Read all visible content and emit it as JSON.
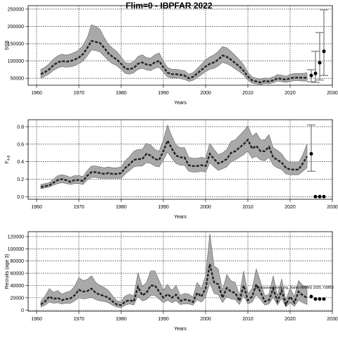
{
  "title": "Flim=0 - IBPFAR 2022",
  "footnote": "stockassessment.org, Name NWWG 2025, f:08f52",
  "chart_data": [
    {
      "type": "line",
      "ylabel": "SSB",
      "xlabel": "Years",
      "xlim": [
        1958,
        2030
      ],
      "ylim": [
        30000,
        260000
      ],
      "xticks": [
        1960,
        1970,
        1980,
        1990,
        2000,
        2010,
        2020,
        2030
      ],
      "yticks": [
        50000,
        100000,
        150000,
        200000,
        250000
      ],
      "grid": true,
      "x": [
        1961,
        1962,
        1963,
        1964,
        1965,
        1966,
        1967,
        1968,
        1969,
        1970,
        1971,
        1972,
        1973,
        1974,
        1975,
        1976,
        1977,
        1978,
        1979,
        1980,
        1981,
        1982,
        1983,
        1984,
        1985,
        1986,
        1987,
        1988,
        1989,
        1990,
        1991,
        1992,
        1993,
        1994,
        1995,
        1996,
        1997,
        1998,
        1999,
        2000,
        2001,
        2002,
        2003,
        2004,
        2005,
        2006,
        2007,
        2008,
        2009,
        2010,
        2011,
        2012,
        2013,
        2014,
        2015,
        2016,
        2017,
        2018,
        2019,
        2020,
        2021,
        2022,
        2023,
        2024
      ],
      "estimate": [
        62000,
        68000,
        76000,
        88000,
        96000,
        100000,
        98000,
        100000,
        104000,
        110000,
        120000,
        138000,
        158000,
        155000,
        152000,
        138000,
        122000,
        112000,
        104000,
        92000,
        78000,
        76000,
        80000,
        92000,
        96000,
        90000,
        88000,
        96000,
        100000,
        82000,
        66000,
        62000,
        62000,
        60000,
        58000,
        50000,
        54000,
        64000,
        74000,
        84000,
        92000,
        96000,
        104000,
        116000,
        112000,
        104000,
        94000,
        84000,
        72000,
        55000,
        44000,
        41000,
        38000,
        42000,
        41000,
        44000,
        50000,
        48000,
        46000,
        50000,
        52000,
        52000,
        51000,
        52000
      ],
      "lower": [
        50000,
        56000,
        63000,
        73000,
        80000,
        84000,
        82000,
        83000,
        86000,
        92000,
        100000,
        115000,
        132000,
        130000,
        126000,
        114000,
        101000,
        92000,
        86000,
        76000,
        64000,
        62000,
        66000,
        76000,
        79000,
        74000,
        72000,
        79000,
        82000,
        67000,
        54000,
        51000,
        51000,
        49000,
        47000,
        41000,
        44000,
        52000,
        60000,
        69000,
        76000,
        79000,
        86000,
        96000,
        92000,
        86000,
        77000,
        69000,
        59000,
        45000,
        36000,
        34000,
        32000,
        35000,
        34000,
        37000,
        42000,
        40000,
        38000,
        41000,
        43000,
        43000,
        42000,
        42000
      ],
      "upper": [
        76000,
        82000,
        92000,
        106000,
        115000,
        120000,
        117000,
        120000,
        125000,
        132000,
        145000,
        168000,
        205000,
        200000,
        192000,
        168000,
        148000,
        137000,
        127000,
        112000,
        95000,
        93000,
        98000,
        113000,
        118000,
        110000,
        108000,
        118000,
        123000,
        100000,
        81000,
        76000,
        76000,
        74000,
        72000,
        62000,
        66000,
        78000,
        90000,
        103000,
        112000,
        118000,
        128000,
        142000,
        138000,
        128000,
        116000,
        103000,
        89000,
        67000,
        54000,
        50000,
        47000,
        51000,
        50000,
        54000,
        61000,
        59000,
        56000,
        61000,
        64000,
        64000,
        64000,
        66000
      ],
      "projection": [
        {
          "x": 2025,
          "y": 58000,
          "lower": 40000,
          "upper": 75000
        },
        {
          "x": 2026,
          "y": 64000,
          "lower": 38000,
          "upper": 128000
        },
        {
          "x": 2027,
          "y": 95000,
          "lower": 45000,
          "upper": 182000
        },
        {
          "x": 2028,
          "y": 128000,
          "lower": 58000,
          "upper": 248000
        }
      ]
    },
    {
      "type": "line",
      "ylabel": "F",
      "ylabel_sub": "4-8",
      "xlabel": "Years",
      "xlim": [
        1958,
        2030
      ],
      "ylim": [
        -0.03,
        0.88
      ],
      "xticks": [
        1960,
        1970,
        1980,
        1990,
        2000,
        2010,
        2020,
        2030
      ],
      "yticks": [
        0.0,
        0.2,
        0.4,
        0.6,
        0.8
      ],
      "ytick_labels": [
        "0.0",
        "0.2",
        "0.4",
        "0.6",
        "0.8"
      ],
      "grid": true,
      "x": [
        1961,
        1962,
        1963,
        1964,
        1965,
        1966,
        1967,
        1968,
        1969,
        1970,
        1971,
        1972,
        1973,
        1974,
        1975,
        1976,
        1977,
        1978,
        1979,
        1980,
        1981,
        1982,
        1983,
        1984,
        1985,
        1986,
        1987,
        1988,
        1989,
        1990,
        1991,
        1992,
        1993,
        1994,
        1995,
        1996,
        1997,
        1998,
        1999,
        2000,
        2001,
        2002,
        2003,
        2004,
        2005,
        2006,
        2007,
        2008,
        2009,
        2010,
        2011,
        2012,
        2013,
        2014,
        2015,
        2016,
        2017,
        2018,
        2019,
        2020,
        2021,
        2022,
        2023,
        2024
      ],
      "estimate": [
        0.11,
        0.12,
        0.13,
        0.16,
        0.19,
        0.2,
        0.19,
        0.17,
        0.19,
        0.19,
        0.18,
        0.24,
        0.28,
        0.28,
        0.27,
        0.26,
        0.27,
        0.26,
        0.26,
        0.27,
        0.33,
        0.37,
        0.42,
        0.43,
        0.43,
        0.49,
        0.47,
        0.43,
        0.42,
        0.52,
        0.64,
        0.55,
        0.47,
        0.45,
        0.45,
        0.36,
        0.35,
        0.35,
        0.36,
        0.35,
        0.49,
        0.43,
        0.38,
        0.4,
        0.43,
        0.5,
        0.52,
        0.56,
        0.6,
        0.65,
        0.55,
        0.58,
        0.52,
        0.52,
        0.57,
        0.45,
        0.42,
        0.39,
        0.33,
        0.31,
        0.31,
        0.31,
        0.38,
        0.46
      ],
      "lower": [
        0.09,
        0.1,
        0.11,
        0.13,
        0.15,
        0.16,
        0.15,
        0.14,
        0.15,
        0.15,
        0.14,
        0.19,
        0.22,
        0.22,
        0.21,
        0.21,
        0.21,
        0.21,
        0.21,
        0.21,
        0.26,
        0.3,
        0.34,
        0.35,
        0.35,
        0.39,
        0.38,
        0.35,
        0.34,
        0.42,
        0.51,
        0.44,
        0.38,
        0.36,
        0.36,
        0.29,
        0.28,
        0.28,
        0.29,
        0.28,
        0.39,
        0.34,
        0.3,
        0.32,
        0.34,
        0.4,
        0.42,
        0.45,
        0.48,
        0.52,
        0.44,
        0.46,
        0.42,
        0.41,
        0.45,
        0.36,
        0.33,
        0.31,
        0.26,
        0.25,
        0.25,
        0.25,
        0.29,
        0.33
      ],
      "upper": [
        0.14,
        0.15,
        0.16,
        0.2,
        0.24,
        0.25,
        0.24,
        0.22,
        0.24,
        0.24,
        0.23,
        0.3,
        0.35,
        0.35,
        0.34,
        0.33,
        0.34,
        0.33,
        0.33,
        0.34,
        0.41,
        0.46,
        0.52,
        0.54,
        0.54,
        0.61,
        0.59,
        0.54,
        0.52,
        0.65,
        0.82,
        0.69,
        0.59,
        0.56,
        0.56,
        0.45,
        0.44,
        0.44,
        0.45,
        0.44,
        0.61,
        0.54,
        0.48,
        0.5,
        0.54,
        0.63,
        0.65,
        0.7,
        0.75,
        0.81,
        0.69,
        0.73,
        0.65,
        0.65,
        0.71,
        0.56,
        0.53,
        0.49,
        0.42,
        0.39,
        0.39,
        0.39,
        0.48,
        0.6
      ],
      "projection": [
        {
          "x": 2025,
          "y": 0.49,
          "lower": 0.29,
          "upper": 0.82
        },
        {
          "x": 2026,
          "y": 0.0
        },
        {
          "x": 2027,
          "y": 0.0
        },
        {
          "x": 2028,
          "y": 0.0
        }
      ]
    },
    {
      "type": "line",
      "ylabel": "Recruits (age 3)",
      "xlabel": "Years",
      "xlim": [
        1958,
        2030
      ],
      "ylim": [
        -2000,
        128000
      ],
      "xticks": [
        1960,
        1970,
        1980,
        1990,
        2000,
        2010,
        2020,
        2030
      ],
      "yticks": [
        0,
        20000,
        40000,
        60000,
        80000,
        100000,
        120000
      ],
      "grid": true,
      "x": [
        1961,
        1962,
        1963,
        1964,
        1965,
        1966,
        1967,
        1968,
        1969,
        1970,
        1971,
        1972,
        1973,
        1974,
        1975,
        1976,
        1977,
        1978,
        1979,
        1980,
        1981,
        1982,
        1983,
        1984,
        1985,
        1986,
        1987,
        1988,
        1989,
        1990,
        1991,
        1992,
        1993,
        1994,
        1995,
        1996,
        1997,
        1998,
        1999,
        2000,
        2001,
        2002,
        2003,
        2004,
        2005,
        2006,
        2007,
        2008,
        2009,
        2010,
        2011,
        2012,
        2013,
        2014,
        2015,
        2016,
        2017,
        2018,
        2019,
        2020,
        2021,
        2022,
        2023,
        2024
      ],
      "estimate": [
        9000,
        14000,
        22000,
        18000,
        20000,
        16000,
        18000,
        19000,
        24000,
        33000,
        30000,
        31000,
        35000,
        28000,
        25000,
        23000,
        20000,
        14000,
        9000,
        8000,
        14000,
        16000,
        14000,
        38000,
        24000,
        28000,
        40000,
        40000,
        30000,
        20000,
        26000,
        20000,
        25000,
        15000,
        17000,
        16000,
        13000,
        28000,
        22000,
        35000,
        75000,
        45000,
        42000,
        20000,
        36000,
        30000,
        28000,
        15000,
        40000,
        16000,
        22000,
        42000,
        29000,
        14000,
        16000,
        35000,
        14000,
        32000,
        9000,
        22000,
        12000,
        30000,
        24000,
        20000
      ],
      "lower": [
        5000,
        8000,
        13000,
        11000,
        12000,
        10000,
        11000,
        11000,
        15000,
        20000,
        18000,
        19000,
        21000,
        17000,
        15000,
        14000,
        12000,
        8000,
        5000,
        4000,
        8000,
        10000,
        8000,
        23000,
        15000,
        17000,
        24000,
        24000,
        18000,
        12000,
        16000,
        12000,
        15000,
        9000,
        10000,
        10000,
        8000,
        17000,
        13000,
        21000,
        45000,
        27000,
        25000,
        12000,
        22000,
        18000,
        17000,
        9000,
        24000,
        10000,
        13000,
        25000,
        17000,
        8000,
        10000,
        21000,
        8000,
        19000,
        5000,
        12000,
        6000,
        16000,
        12000,
        9000
      ],
      "upper": [
        14000,
        23000,
        35000,
        29000,
        32000,
        26000,
        29000,
        31000,
        39000,
        53000,
        48000,
        50000,
        56000,
        45000,
        40000,
        37000,
        32000,
        23000,
        15000,
        14000,
        23000,
        26000,
        23000,
        61000,
        38000,
        45000,
        64000,
        64000,
        48000,
        32000,
        42000,
        32000,
        40000,
        24000,
        27000,
        26000,
        21000,
        45000,
        35000,
        56000,
        125000,
        72000,
        67000,
        32000,
        58000,
        48000,
        45000,
        24000,
        64000,
        26000,
        35000,
        67000,
        46000,
        23000,
        26000,
        56000,
        23000,
        51000,
        16000,
        36000,
        22000,
        48000,
        40000,
        38000
      ],
      "projection": [
        {
          "x": 2025,
          "y": 22000
        },
        {
          "x": 2026,
          "y": 18000
        },
        {
          "x": 2027,
          "y": 18000
        },
        {
          "x": 2028,
          "y": 18000
        }
      ]
    }
  ]
}
